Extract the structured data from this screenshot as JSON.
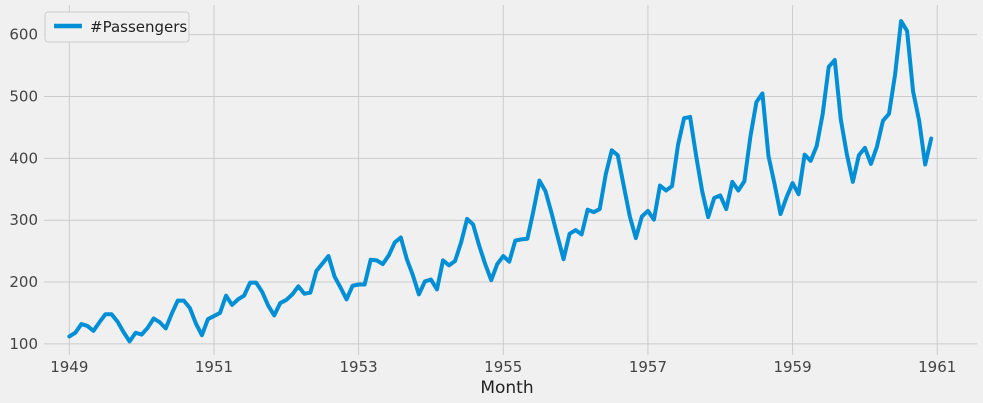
{
  "chart_data": {
    "type": "line",
    "title": "",
    "xlabel": "Month",
    "ylabel": "",
    "grid": true,
    "legend_position": "top-left",
    "series_color": "#008fd5",
    "background": "#f0f0f0",
    "grid_color": "#cbcbcb",
    "xlim": [
      1948.65,
      1961.55
    ],
    "ylim": [
      82,
      648
    ],
    "x_ticks": [
      1949,
      1951,
      1953,
      1955,
      1957,
      1959,
      1961
    ],
    "x_tick_labels": [
      "1949",
      "1951",
      "1953",
      "1955",
      "1957",
      "1959",
      "1961"
    ],
    "y_ticks": [
      100,
      200,
      300,
      400,
      500,
      600
    ],
    "y_tick_labels": [
      "100",
      "200",
      "300",
      "400",
      "500",
      "600"
    ],
    "x_start": "1949-01",
    "x_frequency": "monthly",
    "series": [
      {
        "name": "#Passengers",
        "values": [
          112,
          118,
          132,
          129,
          121,
          135,
          148,
          148,
          136,
          119,
          104,
          118,
          115,
          126,
          141,
          135,
          125,
          149,
          170,
          170,
          158,
          133,
          114,
          140,
          145,
          150,
          178,
          163,
          172,
          178,
          199,
          199,
          184,
          162,
          146,
          166,
          171,
          180,
          193,
          181,
          183,
          218,
          230,
          242,
          209,
          191,
          172,
          194,
          196,
          196,
          236,
          235,
          229,
          243,
          264,
          272,
          237,
          211,
          180,
          201,
          204,
          188,
          235,
          227,
          234,
          264,
          302,
          293,
          259,
          229,
          203,
          229,
          242,
          233,
          267,
          269,
          270,
          315,
          364,
          347,
          312,
          274,
          237,
          278,
          284,
          277,
          317,
          313,
          318,
          374,
          413,
          405,
          355,
          306,
          271,
          306,
          315,
          301,
          356,
          348,
          355,
          422,
          465,
          467,
          404,
          347,
          305,
          336,
          340,
          318,
          362,
          348,
          363,
          435,
          491,
          505,
          404,
          359,
          310,
          337,
          360,
          342,
          406,
          396,
          420,
          472,
          548,
          559,
          463,
          407,
          362,
          405,
          417,
          391,
          419,
          461,
          472,
          535,
          622,
          606,
          508,
          461,
          390,
          432
        ]
      }
    ]
  }
}
